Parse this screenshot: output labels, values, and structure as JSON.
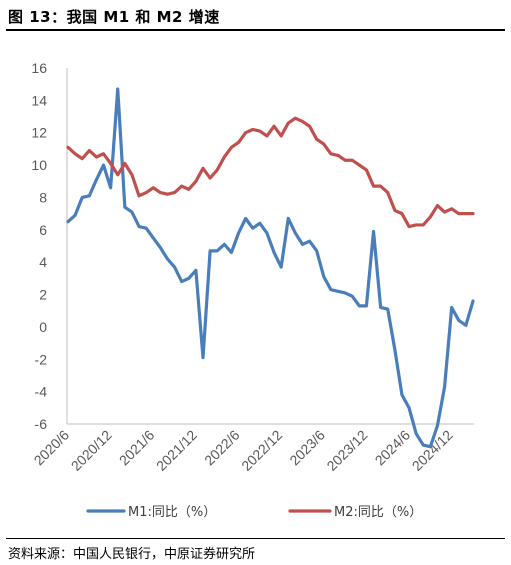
{
  "title": "图 13：我国 M1 和 M2 增速",
  "source": "资料来源：中国人民银行，中原证券研究所",
  "colors": {
    "M1": "#4a7ebb",
    "M2": "#c0504d",
    "grid": "#d9d9d9",
    "tick": "#595959"
  },
  "chart_data": {
    "type": "line",
    "title": "",
    "xlabel": "",
    "ylabel": "",
    "ylim": [
      -6,
      16
    ],
    "yticks": [
      16,
      14,
      12,
      10,
      8,
      6,
      4,
      2,
      0,
      -2,
      -4,
      -6
    ],
    "xticks": [
      "2020/6",
      "2020/12",
      "2021/6",
      "2021/12",
      "2022/6",
      "2022/12",
      "2023/6",
      "2023/12",
      "2024/6",
      "2024/12"
    ],
    "x": [
      "2020/6",
      "2020/7",
      "2020/8",
      "2020/9",
      "2020/10",
      "2020/11",
      "2020/12",
      "2021/1",
      "2021/2",
      "2021/3",
      "2021/4",
      "2021/5",
      "2021/6",
      "2021/7",
      "2021/8",
      "2021/9",
      "2021/10",
      "2021/11",
      "2021/12",
      "2022/1",
      "2022/2",
      "2022/3",
      "2022/4",
      "2022/5",
      "2022/6",
      "2022/7",
      "2022/8",
      "2022/9",
      "2022/10",
      "2022/11",
      "2022/12",
      "2023/1",
      "2023/2",
      "2023/3",
      "2023/4",
      "2023/5",
      "2023/6",
      "2023/7",
      "2023/8",
      "2023/9",
      "2023/10",
      "2023/11",
      "2023/12",
      "2024/1",
      "2024/2",
      "2024/3",
      "2024/4",
      "2024/5",
      "2024/6",
      "2024/7",
      "2024/8",
      "2024/9",
      "2024/10",
      "2024/11",
      "2024/12",
      "2025/1",
      "2025/2",
      "2025/3"
    ],
    "grid": false,
    "legend": "bottom",
    "series": [
      {
        "name": "M1:同比（%）",
        "values": [
          6.5,
          6.9,
          8.0,
          8.1,
          9.1,
          10.0,
          8.6,
          14.7,
          7.4,
          7.1,
          6.2,
          6.1,
          5.5,
          4.9,
          4.2,
          3.7,
          2.8,
          3.0,
          3.5,
          -1.9,
          4.7,
          4.7,
          5.1,
          4.6,
          5.8,
          6.7,
          6.1,
          6.4,
          5.8,
          4.6,
          3.7,
          6.7,
          5.8,
          5.1,
          5.3,
          4.7,
          3.1,
          2.3,
          2.2,
          2.1,
          1.9,
          1.3,
          1.3,
          5.9,
          1.2,
          1.1,
          -1.4,
          -4.2,
          -5.0,
          -6.6,
          -7.3,
          -7.4,
          -6.1,
          -3.7,
          1.2,
          0.4,
          0.1,
          1.6
        ]
      },
      {
        "name": "M2:同比（%）",
        "values": [
          11.1,
          10.7,
          10.4,
          10.9,
          10.5,
          10.7,
          10.1,
          9.4,
          10.1,
          9.4,
          8.1,
          8.3,
          8.6,
          8.3,
          8.2,
          8.3,
          8.7,
          8.5,
          9.0,
          9.8,
          9.2,
          9.7,
          10.5,
          11.1,
          11.4,
          12.0,
          12.2,
          12.1,
          11.8,
          12.4,
          11.8,
          12.6,
          12.9,
          12.7,
          12.4,
          11.6,
          11.3,
          10.7,
          10.6,
          10.3,
          10.3,
          10.0,
          9.7,
          8.7,
          8.7,
          8.3,
          7.2,
          7.0,
          6.2,
          6.3,
          6.3,
          6.8,
          7.5,
          7.1,
          7.3,
          7.0,
          7.0,
          7.0
        ]
      }
    ]
  },
  "chart_data_note_free": true
}
